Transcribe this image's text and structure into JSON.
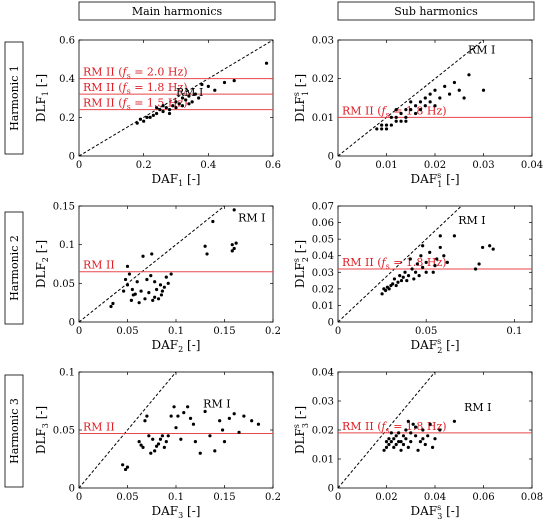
{
  "columns": {
    "main": "Main harmonics",
    "sub": "Sub harmonics"
  },
  "rows": [
    "Harmonic 1",
    "Harmonic 2",
    "Harmonic 3"
  ],
  "colors": {
    "rm2_line": "#e8464a",
    "rm2_text": "#e01e25",
    "points": "#000000"
  },
  "chart_data": [
    {
      "id": "p11",
      "type": "scatter",
      "xlabel": "DAF1 [-]",
      "ylabel": "DLF1 [-]",
      "xlim": [
        0,
        0.6
      ],
      "ylim": [
        0,
        0.6
      ],
      "xticks": [
        0,
        0.2,
        0.4,
        0.6
      ],
      "xtick_labels": [
        "0",
        "0.2",
        "0.4",
        "0.6"
      ],
      "yticks": [
        0,
        0.2,
        0.4,
        0.6
      ],
      "ytick_labels": [
        "0",
        "0.2",
        "0.4",
        "0.6"
      ],
      "rm1_label": "RM I",
      "hlines": [
        {
          "y": 0.4,
          "label": "RM II (fs = 2.0 Hz)"
        },
        {
          "y": 0.32,
          "label": "RM II (fs = 1.8 Hz)"
        },
        {
          "y": 0.24,
          "label": "RM II (fs = 1.5 Hz)"
        }
      ],
      "points": [
        [
          0.58,
          0.48
        ],
        [
          0.48,
          0.39
        ],
        [
          0.45,
          0.38
        ],
        [
          0.42,
          0.34
        ],
        [
          0.38,
          0.37
        ],
        [
          0.37,
          0.3
        ],
        [
          0.36,
          0.32
        ],
        [
          0.35,
          0.28
        ],
        [
          0.34,
          0.31
        ],
        [
          0.33,
          0.29
        ],
        [
          0.32,
          0.26
        ],
        [
          0.31,
          0.27
        ],
        [
          0.3,
          0.25
        ],
        [
          0.3,
          0.28
        ],
        [
          0.29,
          0.26
        ],
        [
          0.28,
          0.24
        ],
        [
          0.27,
          0.25
        ],
        [
          0.26,
          0.23
        ],
        [
          0.25,
          0.24
        ],
        [
          0.24,
          0.22
        ],
        [
          0.23,
          0.21
        ],
        [
          0.22,
          0.2
        ],
        [
          0.21,
          0.2
        ],
        [
          0.2,
          0.18
        ],
        [
          0.19,
          0.19
        ],
        [
          0.18,
          0.17
        ],
        [
          0.28,
          0.22
        ],
        [
          0.32,
          0.3
        ],
        [
          0.26,
          0.26
        ],
        [
          0.24,
          0.25
        ],
        [
          0.4,
          0.36
        ],
        [
          0.34,
          0.27
        ]
      ]
    },
    {
      "id": "p12",
      "type": "scatter",
      "xlabel": "DAFs1 [-]",
      "ylabel": "DLFs1 [-]",
      "xlim": [
        0,
        0.04
      ],
      "ylim": [
        0,
        0.03
      ],
      "xticks": [
        0,
        0.01,
        0.02,
        0.03,
        0.04
      ],
      "xtick_labels": [
        "0",
        "0.01",
        "0.02",
        "0.03",
        "0.04"
      ],
      "yticks": [
        0,
        0.01,
        0.02,
        0.03
      ],
      "ytick_labels": [
        "0",
        "0.01",
        "0.02",
        "0.03"
      ],
      "rm1_label": "RM I",
      "hlines": [
        {
          "y": 0.01,
          "label": "RM II (fs = 1.8 Hz)"
        }
      ],
      "points": [
        [
          0.03,
          0.017
        ],
        [
          0.027,
          0.021
        ],
        [
          0.026,
          0.015
        ],
        [
          0.025,
          0.017
        ],
        [
          0.024,
          0.019
        ],
        [
          0.023,
          0.016
        ],
        [
          0.022,
          0.018
        ],
        [
          0.021,
          0.015
        ],
        [
          0.02,
          0.017
        ],
        [
          0.019,
          0.014
        ],
        [
          0.019,
          0.016
        ],
        [
          0.018,
          0.013
        ],
        [
          0.018,
          0.015
        ],
        [
          0.017,
          0.014
        ],
        [
          0.017,
          0.012
        ],
        [
          0.016,
          0.013
        ],
        [
          0.016,
          0.011
        ],
        [
          0.015,
          0.012
        ],
        [
          0.014,
          0.012
        ],
        [
          0.014,
          0.01
        ],
        [
          0.013,
          0.011
        ],
        [
          0.013,
          0.009
        ],
        [
          0.012,
          0.01
        ],
        [
          0.012,
          0.009
        ],
        [
          0.011,
          0.008
        ],
        [
          0.011,
          0.01
        ],
        [
          0.01,
          0.008
        ],
        [
          0.01,
          0.007
        ],
        [
          0.009,
          0.008
        ],
        [
          0.009,
          0.007
        ],
        [
          0.008,
          0.007
        ],
        [
          0.015,
          0.014
        ],
        [
          0.02,
          0.013
        ],
        [
          0.014,
          0.009
        ],
        [
          0.012,
          0.012
        ]
      ]
    },
    {
      "id": "p21",
      "type": "scatter",
      "xlabel": "DAF2 [-]",
      "ylabel": "DLF2 [-]",
      "xlim": [
        0,
        0.2
      ],
      "ylim": [
        0,
        0.15
      ],
      "xticks": [
        0,
        0.05,
        0.1,
        0.15,
        0.2
      ],
      "xtick_labels": [
        "0",
        "0.05",
        "0.1",
        "0.15",
        "0.2"
      ],
      "yticks": [
        0,
        0.05,
        0.1,
        0.15
      ],
      "ytick_labels": [
        "0",
        "0.05",
        "0.1",
        "0.15"
      ],
      "rm1_label": "RM I",
      "hlines": [
        {
          "y": 0.065,
          "label": "RM II"
        }
      ],
      "points": [
        [
          0.16,
          0.145
        ],
        [
          0.162,
          0.102
        ],
        [
          0.16,
          0.095
        ],
        [
          0.158,
          0.092
        ],
        [
          0.158,
          0.1
        ],
        [
          0.138,
          0.13
        ],
        [
          0.13,
          0.098
        ],
        [
          0.132,
          0.088
        ],
        [
          0.095,
          0.062
        ],
        [
          0.092,
          0.05
        ],
        [
          0.09,
          0.058
        ],
        [
          0.088,
          0.045
        ],
        [
          0.086,
          0.04
        ],
        [
          0.085,
          0.035
        ],
        [
          0.084,
          0.048
        ],
        [
          0.082,
          0.03
        ],
        [
          0.08,
          0.042
        ],
        [
          0.078,
          0.032
        ],
        [
          0.076,
          0.028
        ],
        [
          0.075,
          0.088
        ],
        [
          0.074,
          0.06
        ],
        [
          0.072,
          0.038
        ],
        [
          0.07,
          0.055
        ],
        [
          0.068,
          0.03
        ],
        [
          0.066,
          0.085
        ],
        [
          0.064,
          0.04
        ],
        [
          0.06,
          0.052
        ],
        [
          0.058,
          0.036
        ],
        [
          0.056,
          0.035
        ],
        [
          0.055,
          0.042
        ],
        [
          0.054,
          0.028
        ],
        [
          0.052,
          0.062
        ],
        [
          0.05,
          0.048
        ],
        [
          0.05,
          0.072
        ],
        [
          0.048,
          0.055
        ],
        [
          0.046,
          0.04
        ],
        [
          0.035,
          0.024
        ],
        [
          0.033,
          0.02
        ],
        [
          0.062,
          0.025
        ],
        [
          0.078,
          0.052
        ]
      ]
    },
    {
      "id": "p22",
      "type": "scatter",
      "xlabel": "DAFs2 [-]",
      "ylabel": "DLFs2 [-]",
      "xlim": [
        0,
        0.11
      ],
      "ylim": [
        0,
        0.07
      ],
      "xticks": [
        0,
        0.05,
        0.1
      ],
      "xtick_labels": [
        "0",
        "0.05",
        "0.1"
      ],
      "yticks": [
        0,
        0.01,
        0.02,
        0.03,
        0.04,
        0.05,
        0.06,
        0.07
      ],
      "ytick_labels": [
        "0",
        "0.01",
        "0.02",
        "0.03",
        "0.04",
        "0.05",
        "0.06",
        "0.07"
      ],
      "rm1_label": "RM I",
      "hlines": [
        {
          "y": 0.032,
          "label": "RM II (fs = 1.8 Hz)"
        }
      ],
      "points": [
        [
          0.088,
          0.044
        ],
        [
          0.086,
          0.046
        ],
        [
          0.082,
          0.045
        ],
        [
          0.08,
          0.035
        ],
        [
          0.078,
          0.032
        ],
        [
          0.066,
          0.052
        ],
        [
          0.06,
          0.04
        ],
        [
          0.058,
          0.052
        ],
        [
          0.058,
          0.045
        ],
        [
          0.056,
          0.038
        ],
        [
          0.055,
          0.034
        ],
        [
          0.054,
          0.03
        ],
        [
          0.052,
          0.042
        ],
        [
          0.05,
          0.036
        ],
        [
          0.05,
          0.03
        ],
        [
          0.048,
          0.033
        ],
        [
          0.047,
          0.04
        ],
        [
          0.046,
          0.028
        ],
        [
          0.045,
          0.035
        ],
        [
          0.044,
          0.03
        ],
        [
          0.043,
          0.026
        ],
        [
          0.042,
          0.032
        ],
        [
          0.041,
          0.038
        ],
        [
          0.04,
          0.028
        ],
        [
          0.039,
          0.025
        ],
        [
          0.038,
          0.03
        ],
        [
          0.037,
          0.027
        ],
        [
          0.036,
          0.025
        ],
        [
          0.035,
          0.028
        ],
        [
          0.034,
          0.024
        ],
        [
          0.033,
          0.022
        ],
        [
          0.032,
          0.026
        ],
        [
          0.031,
          0.023
        ],
        [
          0.03,
          0.022
        ],
        [
          0.029,
          0.02
        ],
        [
          0.028,
          0.021
        ],
        [
          0.027,
          0.019
        ],
        [
          0.026,
          0.02
        ],
        [
          0.025,
          0.017
        ],
        [
          0.062,
          0.036
        ],
        [
          0.048,
          0.046
        ]
      ]
    },
    {
      "id": "p31",
      "type": "scatter",
      "xlabel": "DAF3 [-]",
      "ylabel": "DLF3 [-]",
      "xlim": [
        0,
        0.2
      ],
      "ylim": [
        0,
        0.1
      ],
      "xticks": [
        0,
        0.05,
        0.1,
        0.15,
        0.2
      ],
      "xtick_labels": [
        "0",
        "0.05",
        "0.1",
        "0.15",
        "0.2"
      ],
      "yticks": [
        0,
        0.05,
        0.1
      ],
      "ytick_labels": [
        "0",
        "0.05",
        "0.1"
      ],
      "rm1_label": "RM I",
      "hlines": [
        {
          "y": 0.047,
          "label": "RM II"
        }
      ],
      "points": [
        [
          0.185,
          0.055
        ],
        [
          0.178,
          0.058
        ],
        [
          0.17,
          0.062
        ],
        [
          0.165,
          0.048
        ],
        [
          0.16,
          0.064
        ],
        [
          0.155,
          0.06
        ],
        [
          0.15,
          0.04
        ],
        [
          0.148,
          0.05
        ],
        [
          0.145,
          0.058
        ],
        [
          0.14,
          0.032
        ],
        [
          0.135,
          0.045
        ],
        [
          0.13,
          0.066
        ],
        [
          0.125,
          0.03
        ],
        [
          0.12,
          0.04
        ],
        [
          0.118,
          0.055
        ],
        [
          0.115,
          0.06
        ],
        [
          0.112,
          0.07
        ],
        [
          0.108,
          0.065
        ],
        [
          0.105,
          0.042
        ],
        [
          0.102,
          0.062
        ],
        [
          0.1,
          0.052
        ],
        [
          0.098,
          0.07
        ],
        [
          0.095,
          0.062
        ],
        [
          0.092,
          0.045
        ],
        [
          0.09,
          0.04
        ],
        [
          0.088,
          0.035
        ],
        [
          0.086,
          0.045
        ],
        [
          0.084,
          0.042
        ],
        [
          0.082,
          0.038
        ],
        [
          0.08,
          0.036
        ],
        [
          0.078,
          0.032
        ],
        [
          0.076,
          0.042
        ],
        [
          0.074,
          0.03
        ],
        [
          0.072,
          0.045
        ],
        [
          0.07,
          0.062
        ],
        [
          0.068,
          0.058
        ],
        [
          0.066,
          0.035
        ],
        [
          0.064,
          0.037
        ],
        [
          0.062,
          0.04
        ],
        [
          0.05,
          0.018
        ],
        [
          0.048,
          0.016
        ],
        [
          0.045,
          0.02
        ]
      ]
    },
    {
      "id": "p32",
      "type": "scatter",
      "xlabel": "DAFs3 [-]",
      "ylabel": "DLFs3 [-]",
      "xlim": [
        0,
        0.08
      ],
      "ylim": [
        0,
        0.04
      ],
      "xticks": [
        0,
        0.02,
        0.04,
        0.06,
        0.08
      ],
      "xtick_labels": [
        "0",
        "0.02",
        "0.04",
        "0.06",
        "0.08"
      ],
      "yticks": [
        0,
        0.01,
        0.02,
        0.03,
        0.04
      ],
      "ytick_labels": [
        "0",
        "0.01",
        "0.02",
        "0.03",
        "0.04"
      ],
      "rm1_label": "RM I",
      "hlines": [
        {
          "y": 0.019,
          "label": "RM II (fs = 1.8 Hz)"
        }
      ],
      "points": [
        [
          0.048,
          0.023
        ],
        [
          0.042,
          0.02
        ],
        [
          0.04,
          0.017
        ],
        [
          0.039,
          0.014
        ],
        [
          0.038,
          0.022
        ],
        [
          0.037,
          0.018
        ],
        [
          0.036,
          0.015
        ],
        [
          0.035,
          0.02
        ],
        [
          0.034,
          0.016
        ],
        [
          0.033,
          0.013
        ],
        [
          0.032,
          0.018
        ],
        [
          0.031,
          0.022
        ],
        [
          0.03,
          0.016
        ],
        [
          0.03,
          0.019
        ],
        [
          0.029,
          0.014
        ],
        [
          0.028,
          0.017
        ],
        [
          0.028,
          0.02
        ],
        [
          0.027,
          0.015
        ],
        [
          0.027,
          0.018
        ],
        [
          0.026,
          0.016
        ],
        [
          0.026,
          0.013
        ],
        [
          0.025,
          0.019
        ],
        [
          0.025,
          0.016
        ],
        [
          0.024,
          0.015
        ],
        [
          0.024,
          0.018
        ],
        [
          0.023,
          0.017
        ],
        [
          0.023,
          0.014
        ],
        [
          0.022,
          0.016
        ],
        [
          0.022,
          0.019
        ],
        [
          0.021,
          0.015
        ],
        [
          0.021,
          0.017
        ],
        [
          0.02,
          0.014
        ],
        [
          0.02,
          0.016
        ],
        [
          0.019,
          0.013
        ],
        [
          0.032,
          0.021
        ],
        [
          0.029,
          0.023
        ],
        [
          0.035,
          0.017
        ]
      ]
    }
  ]
}
